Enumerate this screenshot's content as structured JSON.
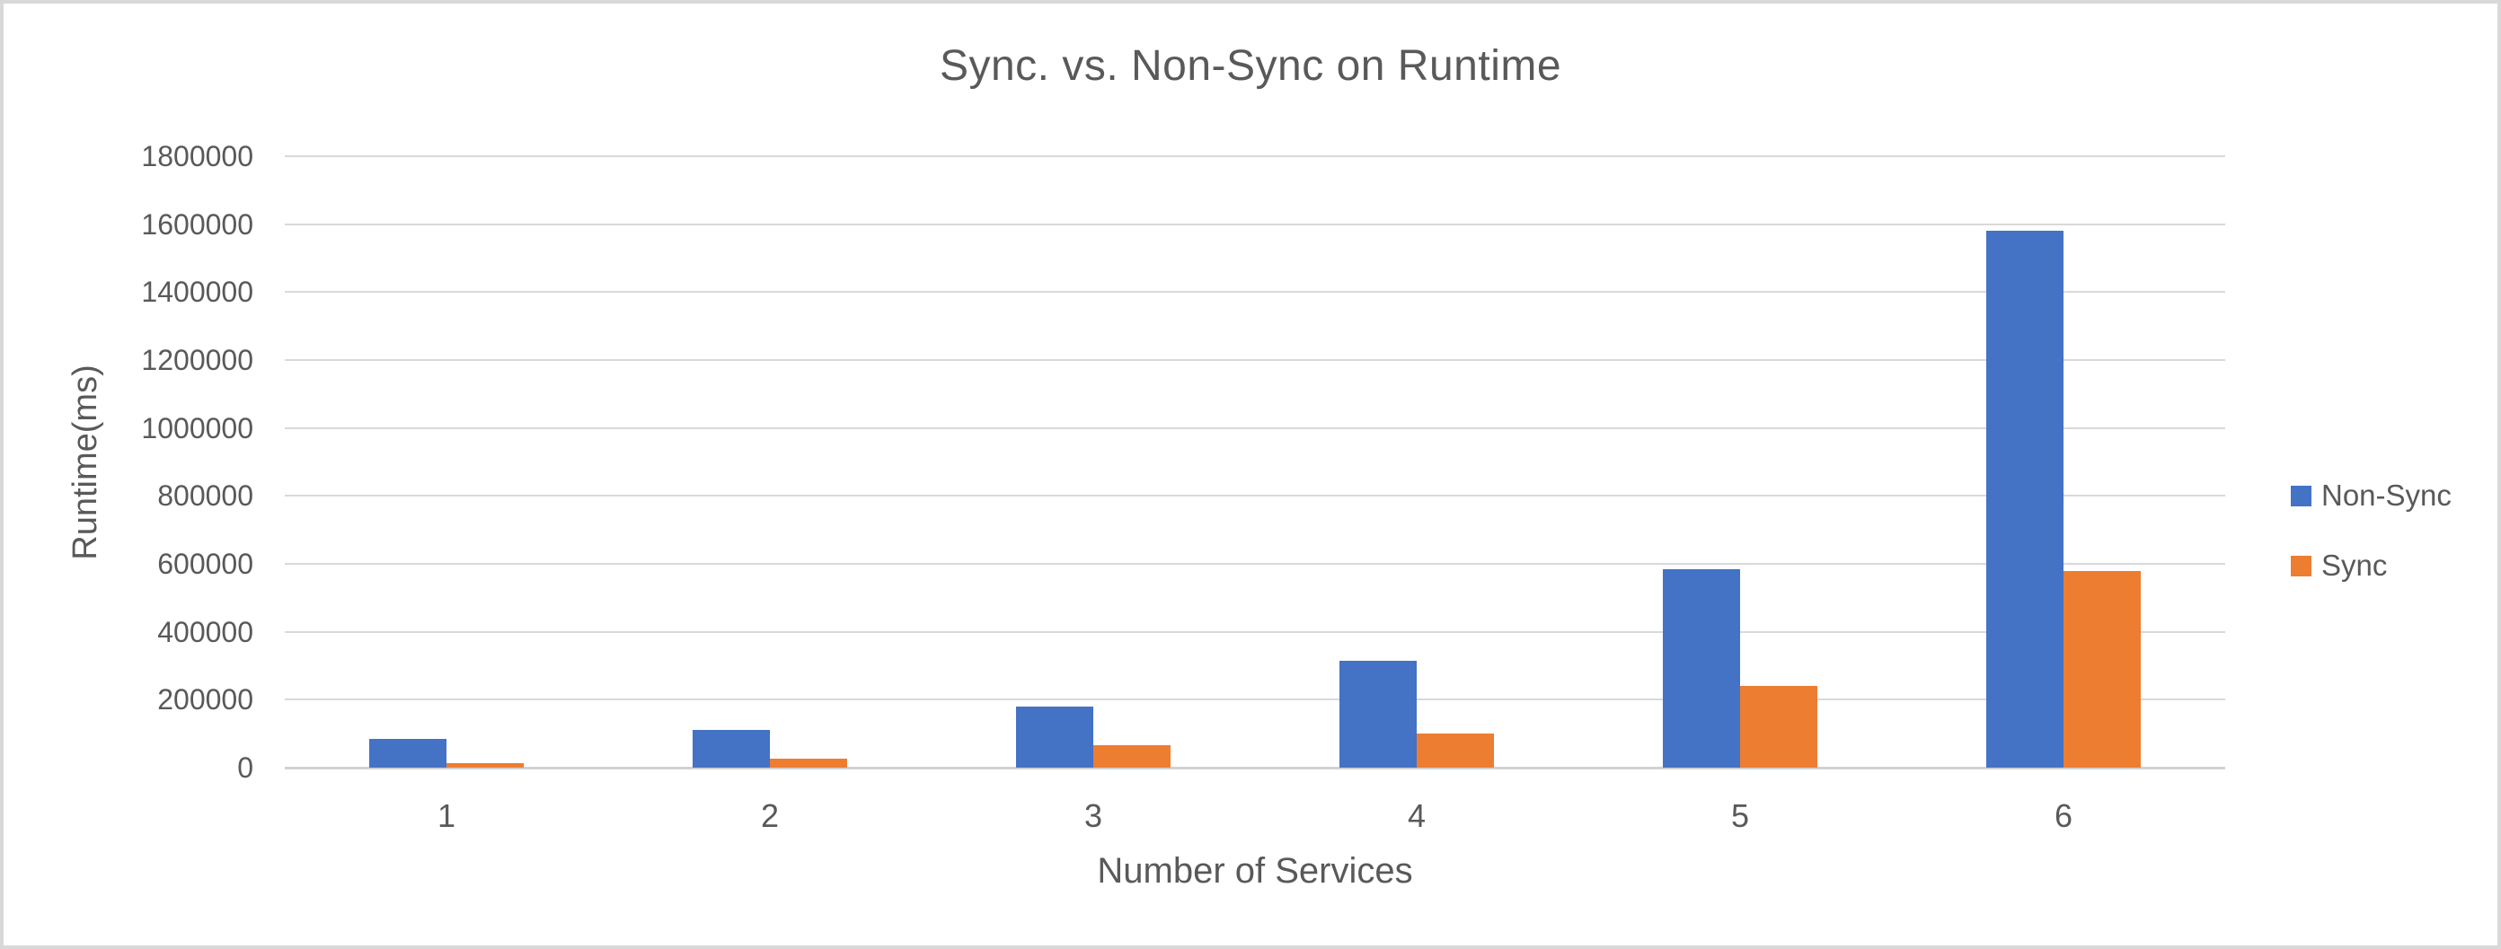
{
  "chart_data": {
    "type": "bar",
    "title": "Sync. vs. Non-Sync on Runtime",
    "xlabel": "Number of Services",
    "ylabel": "Runtime(ms)",
    "categories": [
      "1",
      "2",
      "3",
      "4",
      "5",
      "6"
    ],
    "series": [
      {
        "name": "Non-Sync",
        "color": "#4472C4",
        "values": [
          85000,
          110000,
          180000,
          315000,
          585000,
          1580000
        ]
      },
      {
        "name": "Sync",
        "color": "#ED7D31",
        "values": [
          12000,
          27000,
          65000,
          100000,
          240000,
          580000
        ]
      }
    ],
    "ylim": [
      0,
      1800000
    ],
    "yticks": [
      0,
      200000,
      400000,
      600000,
      800000,
      1000000,
      1200000,
      1400000,
      1600000,
      1800000
    ],
    "grid": "horizontal",
    "legend_position": "right",
    "text_color": "#595959",
    "gridline_color": "#D9D9D9",
    "frame_color": "#D8D8D8"
  }
}
